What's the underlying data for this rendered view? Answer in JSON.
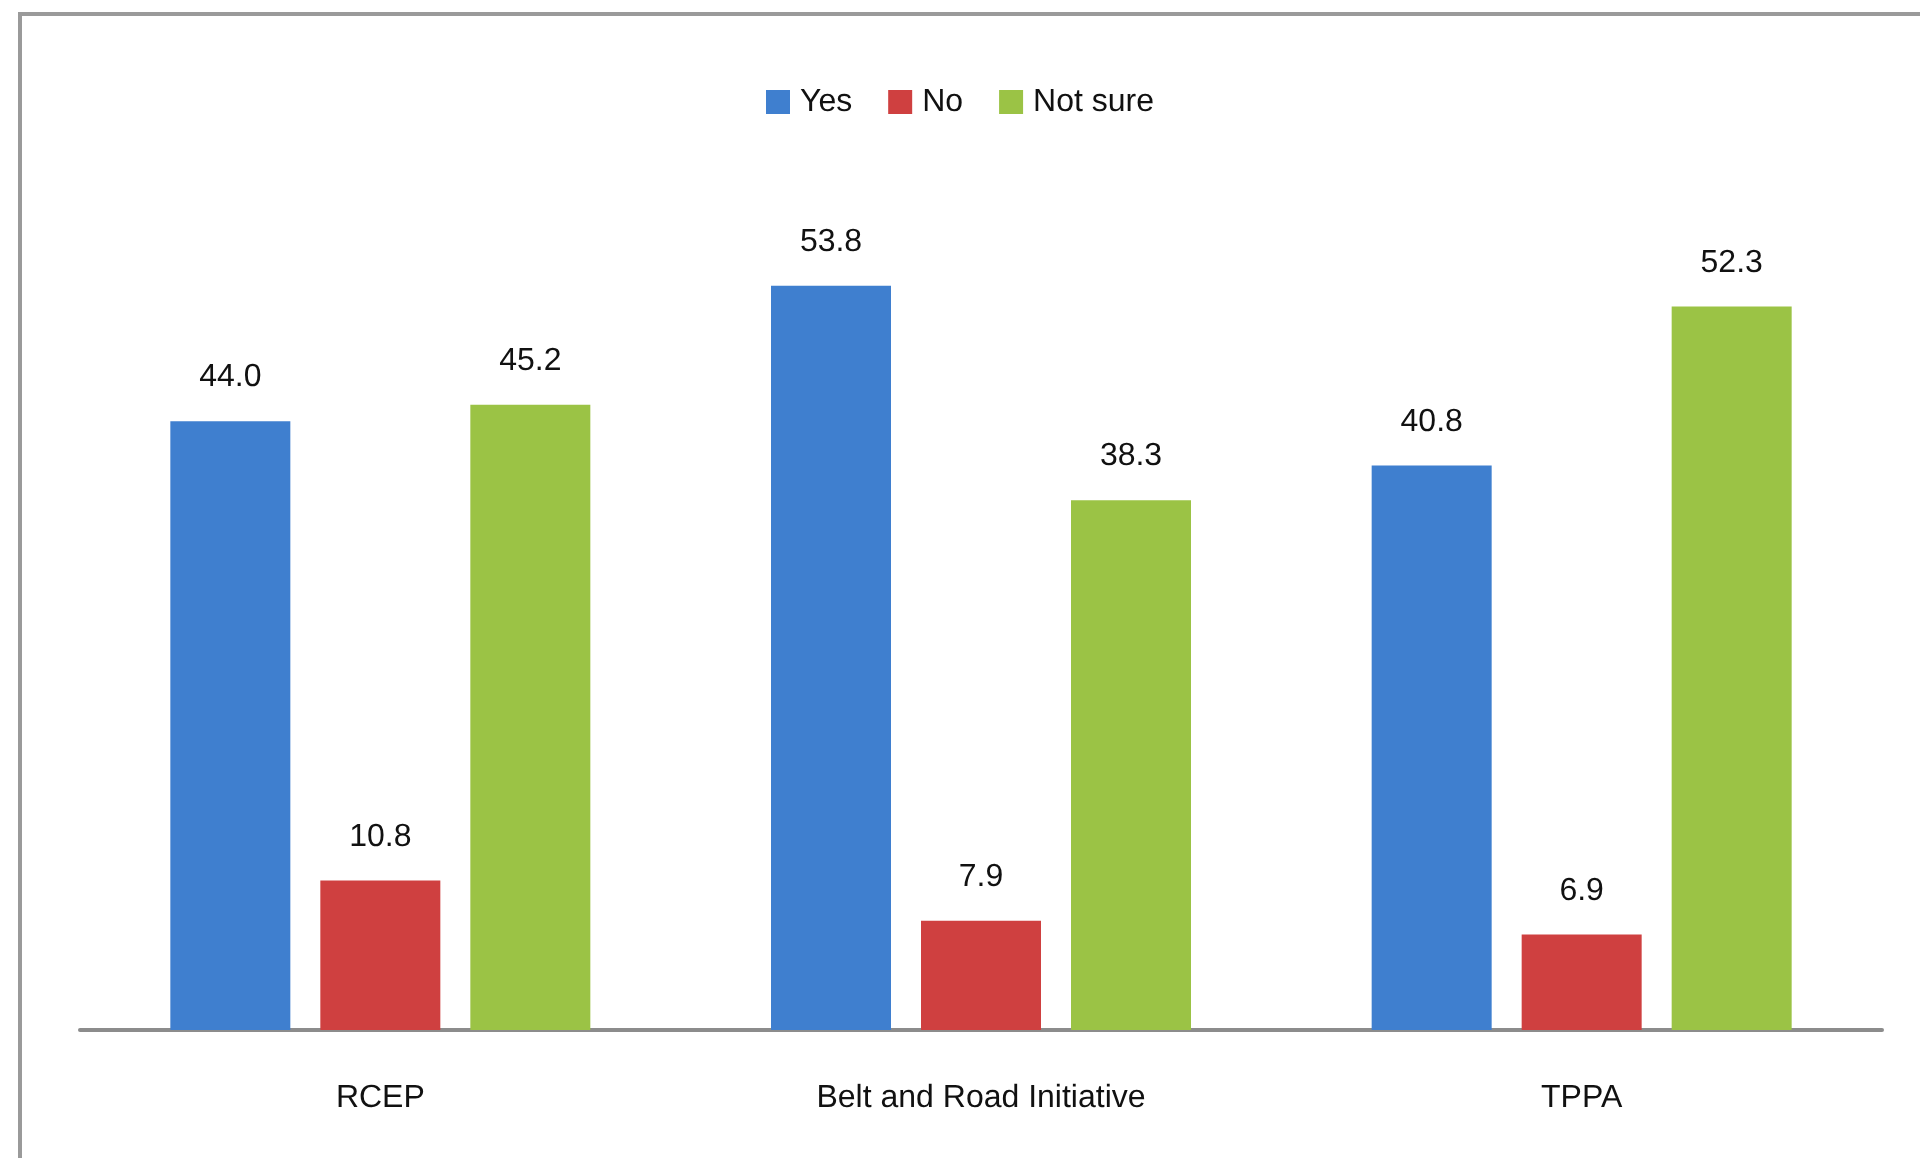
{
  "chart_data": {
    "type": "bar",
    "categories": [
      "RCEP",
      "Belt and Road Initiative",
      "TPPA"
    ],
    "series": [
      {
        "name": "Yes",
        "color": "#3f7fcf",
        "values": [
          44.0,
          53.8,
          40.8
        ],
        "value_labels": [
          "44.0",
          "53.8",
          "40.8"
        ]
      },
      {
        "name": "No",
        "color": "#cf4040",
        "values": [
          10.8,
          7.9,
          6.9
        ],
        "value_labels": [
          "10.8",
          "7.9",
          "6.9"
        ]
      },
      {
        "name": "Not sure",
        "color": "#9bc345",
        "values": [
          45.2,
          38.3,
          52.3
        ],
        "value_labels": [
          "45.2",
          "38.3",
          "52.3"
        ]
      }
    ],
    "legend": "top",
    "grid": false,
    "tick_labels": "x"
  }
}
